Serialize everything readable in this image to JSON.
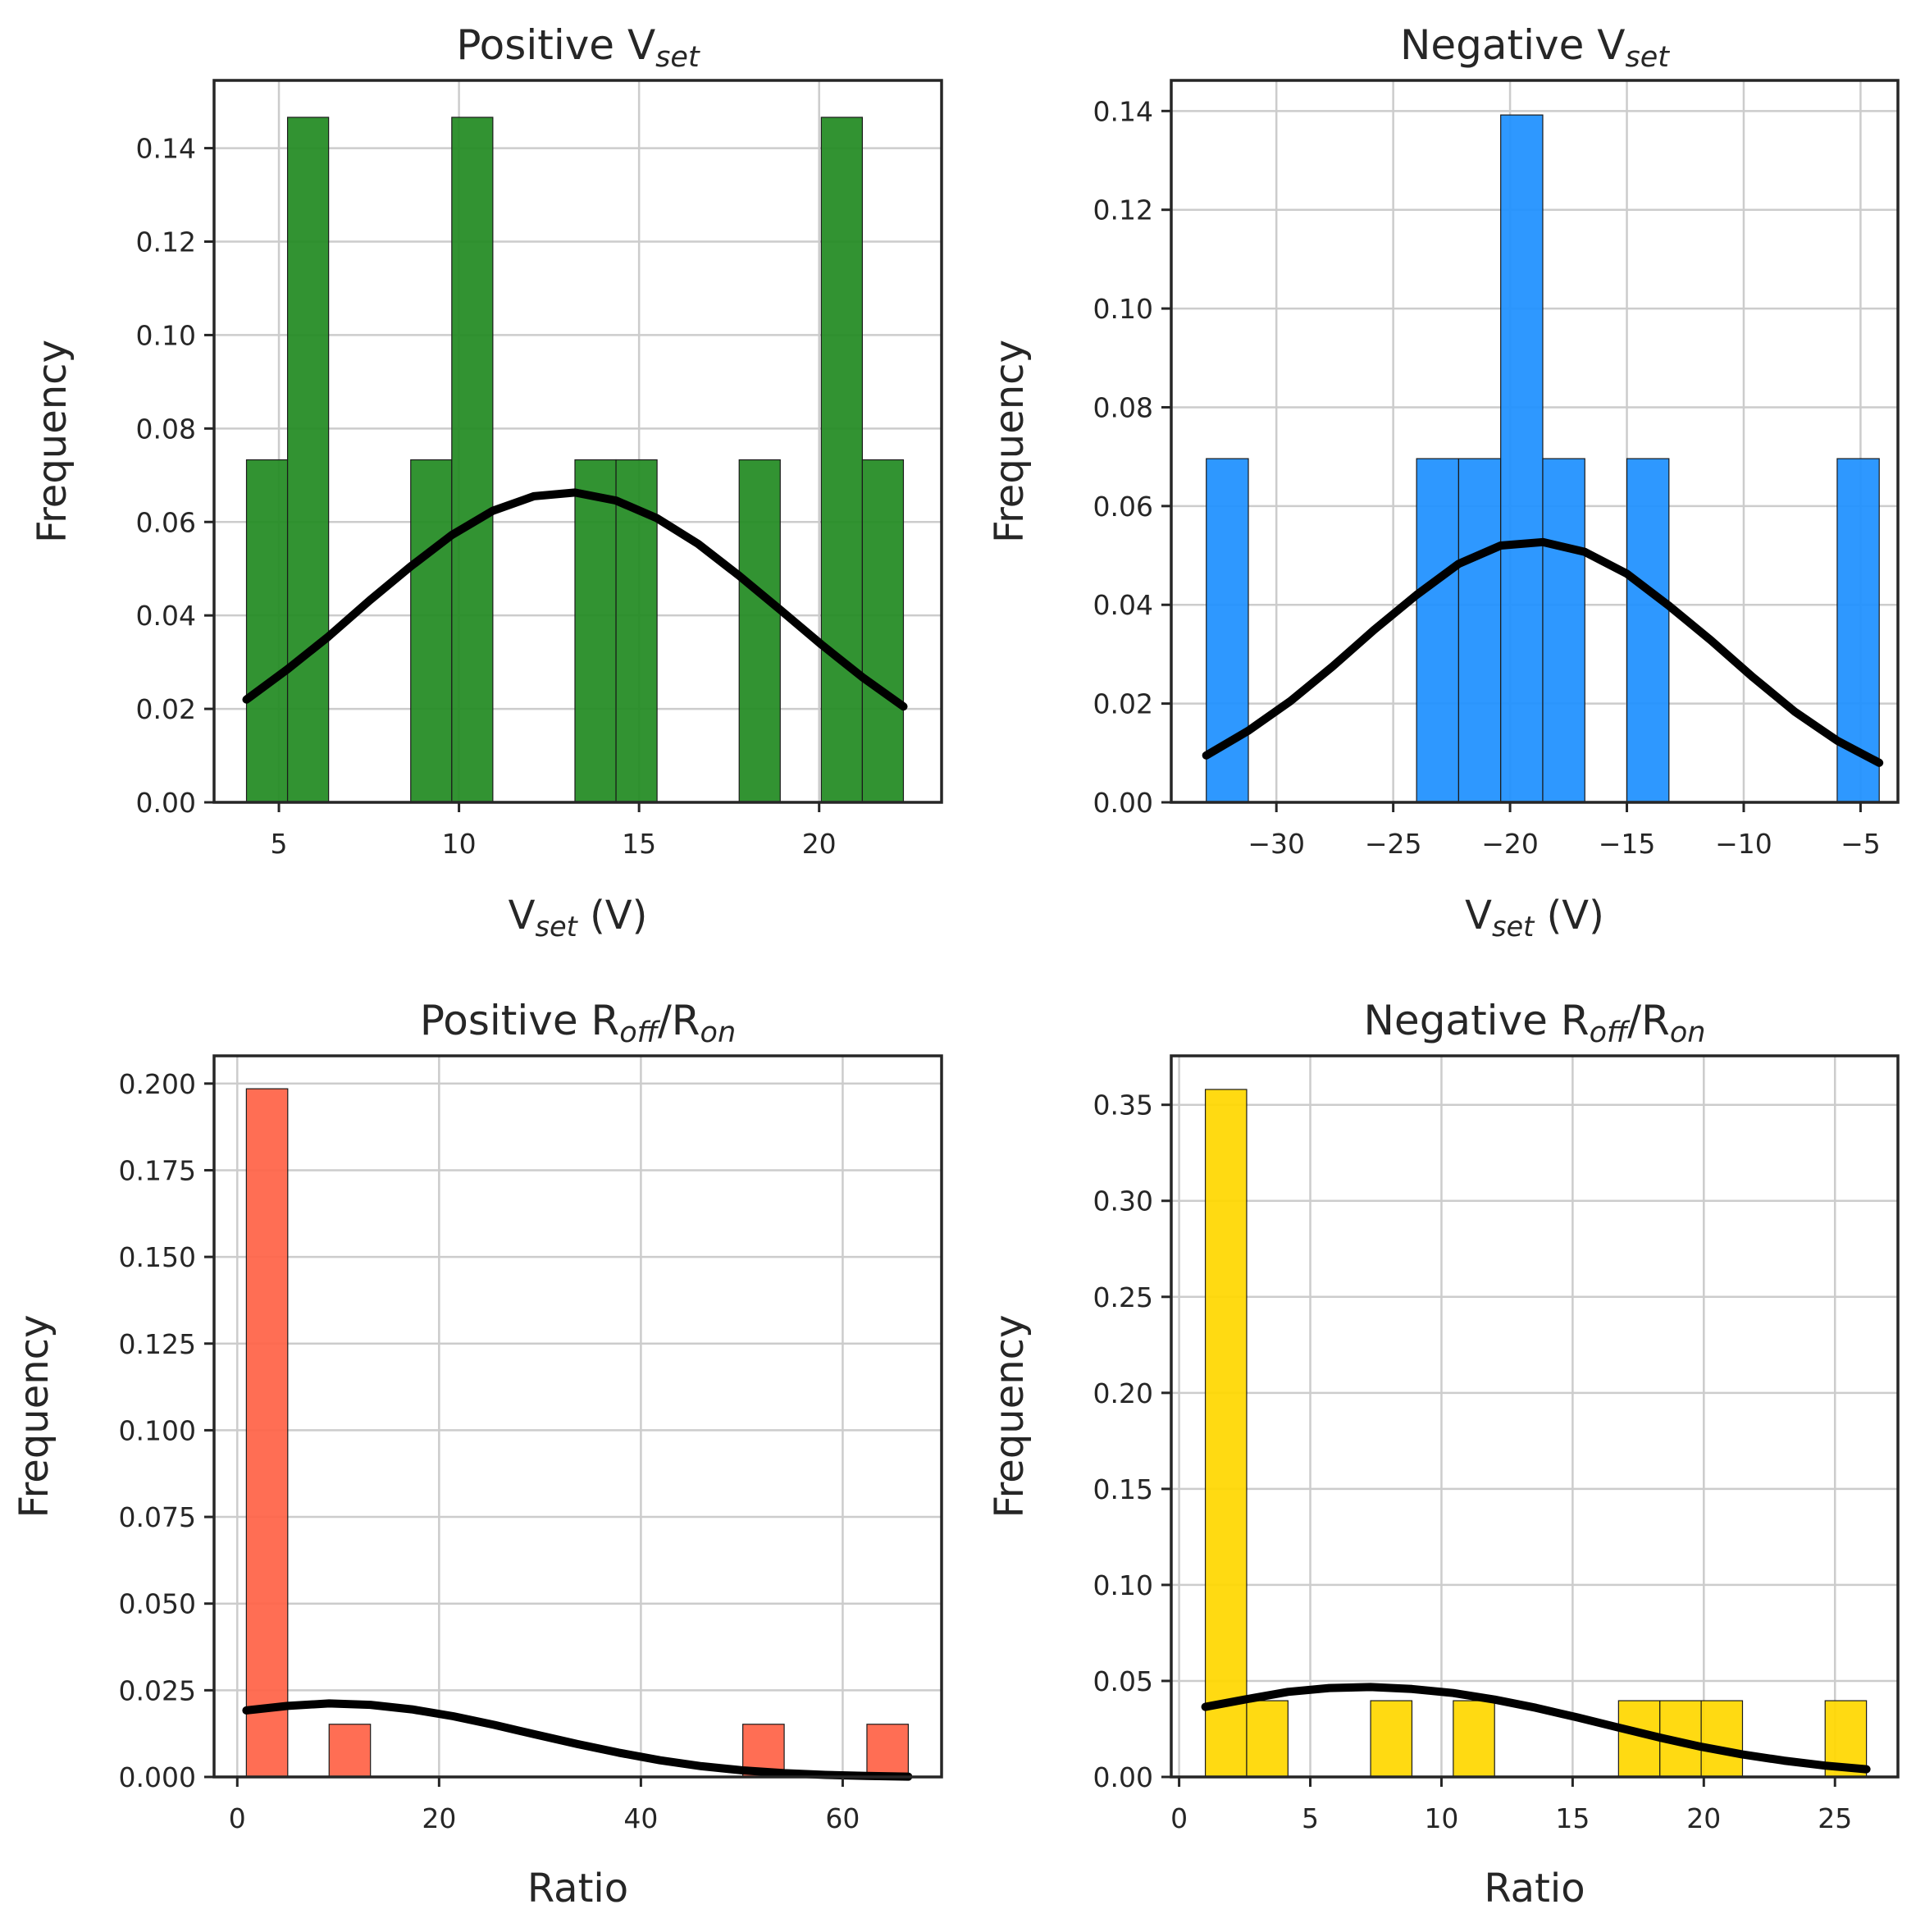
{
  "chart_data": [
    {
      "type": "bar",
      "title": "Positive V",
      "title_sub": "set",
      "xlabel": "V",
      "xlabel_sub": "set",
      "xlabel_suffix": " (V)",
      "ylabel": "Frequency",
      "xlim": [
        3.2,
        23.4
      ],
      "ylim": [
        0,
        0.1545
      ],
      "xticks": [
        5,
        10,
        15,
        20
      ],
      "yticks": [
        0.0,
        0.02,
        0.04,
        0.06,
        0.08,
        0.1,
        0.12,
        0.14
      ],
      "ytick_labels": [
        "0.00",
        "0.02",
        "0.04",
        "0.06",
        "0.08",
        "0.10",
        "0.12",
        "0.14"
      ],
      "grid": true,
      "color": "#228B22",
      "bin_edges": [
        4.1,
        5.24,
        6.38,
        7.52,
        8.66,
        9.8,
        10.94,
        12.08,
        13.22,
        14.36,
        15.5,
        16.64,
        17.78,
        18.92,
        20.06,
        21.2,
        22.34
      ],
      "values": [
        0.0733,
        0.1466,
        0,
        0,
        0.0733,
        0.1466,
        0,
        0,
        0.0733,
        0.0733,
        0,
        0,
        0.0733,
        0,
        0.1466,
        0.0733
      ],
      "kde": {
        "x": [
          4.1,
          5.24,
          6.38,
          7.52,
          8.66,
          9.8,
          10.94,
          12.08,
          13.22,
          14.36,
          15.5,
          16.64,
          17.78,
          18.92,
          20.06,
          21.2,
          22.34
        ],
        "y": [
          0.022,
          0.0285,
          0.0355,
          0.0432,
          0.0505,
          0.0572,
          0.0624,
          0.0655,
          0.0663,
          0.0646,
          0.0608,
          0.0553,
          0.0485,
          0.0412,
          0.0338,
          0.0268,
          0.0205
        ]
      }
    },
    {
      "type": "bar",
      "title": "Negative V",
      "title_sub": "set",
      "xlabel": "V",
      "xlabel_sub": "set",
      "xlabel_suffix": " (V)",
      "ylabel": "Frequency",
      "xlim": [
        -34.5,
        -3.4
      ],
      "ylim": [
        0,
        0.1462
      ],
      "xticks": [
        -30,
        -25,
        -20,
        -15,
        -10,
        -5
      ],
      "xtick_labels": [
        "−30",
        "−25",
        "−20",
        "−15",
        "−10",
        "−5"
      ],
      "yticks": [
        0.0,
        0.02,
        0.04,
        0.06,
        0.08,
        0.1,
        0.12,
        0.14
      ],
      "ytick_labels": [
        "0.00",
        "0.02",
        "0.04",
        "0.06",
        "0.08",
        "0.10",
        "0.12",
        "0.14"
      ],
      "grid": true,
      "color": "#1E90FF",
      "bin_edges": [
        -33.0,
        -31.2,
        -29.4,
        -27.6,
        -25.8,
        -24.0,
        -22.2,
        -20.4,
        -18.6,
        -16.8,
        -15.0,
        -13.2,
        -11.4,
        -9.6,
        -7.8,
        -6.0,
        -4.2
      ],
      "values": [
        0.0696,
        0,
        0,
        0,
        0,
        0.0696,
        0.0696,
        0.1392,
        0.0696,
        0,
        0.0696,
        0,
        0,
        0,
        0,
        0.0696
      ],
      "kde": {
        "x": [
          -33.0,
          -31.2,
          -29.4,
          -27.6,
          -25.8,
          -24.0,
          -22.2,
          -20.4,
          -18.6,
          -16.8,
          -15.0,
          -13.2,
          -11.4,
          -9.6,
          -7.8,
          -6.0,
          -4.2
        ],
        "y": [
          0.0095,
          0.0145,
          0.0205,
          0.0275,
          0.035,
          0.042,
          0.0483,
          0.052,
          0.0527,
          0.0507,
          0.0463,
          0.0398,
          0.0328,
          0.0253,
          0.0183,
          0.0125,
          0.008
        ]
      }
    },
    {
      "type": "bar",
      "title": "Positive R",
      "title_sub1": "off",
      "title_mid": "/R",
      "title_sub2": "on",
      "xlabel": "Ratio",
      "ylabel": "Frequency",
      "xlim": [
        -2.3,
        69.8
      ],
      "ylim": [
        0,
        0.208
      ],
      "xticks": [
        0,
        20,
        40,
        60
      ],
      "yticks": [
        0.0,
        0.025,
        0.05,
        0.075,
        0.1,
        0.125,
        0.15,
        0.175,
        0.2
      ],
      "ytick_labels": [
        "0.000",
        "0.025",
        "0.050",
        "0.075",
        "0.100",
        "0.125",
        "0.150",
        "0.175",
        "0.200"
      ],
      "grid": true,
      "color": "#FF6347",
      "bin_edges": [
        0.9,
        5.0,
        9.1,
        13.2,
        17.3,
        21.4,
        25.5,
        29.6,
        33.7,
        37.8,
        41.9,
        46.0,
        50.1,
        54.2,
        58.3,
        62.4,
        66.5
      ],
      "values": [
        0.1985,
        0,
        0.0152,
        0,
        0,
        0,
        0,
        0,
        0,
        0,
        0,
        0,
        0.0152,
        0,
        0,
        0.0152
      ],
      "kde": {
        "x": [
          0.9,
          5.0,
          9.1,
          13.2,
          17.3,
          21.4,
          25.5,
          29.6,
          33.7,
          37.8,
          41.9,
          46.0,
          50.1,
          54.2,
          58.3,
          62.4,
          66.5
        ],
        "y": [
          0.0192,
          0.0205,
          0.0212,
          0.0208,
          0.0195,
          0.0175,
          0.015,
          0.0122,
          0.0095,
          0.007,
          0.0048,
          0.0031,
          0.0019,
          0.0011,
          0.0006,
          0.0003,
          0.0001
        ]
      }
    },
    {
      "type": "bar",
      "title": "Negative R",
      "title_sub1": "off",
      "title_mid": "/R",
      "title_sub2": "on",
      "xlabel": "Ratio",
      "ylabel": "Frequency",
      "xlim": [
        -0.3,
        27.4
      ],
      "ylim": [
        0,
        0.3755
      ],
      "xticks": [
        0,
        5,
        10,
        15,
        20,
        25
      ],
      "yticks": [
        0.0,
        0.05,
        0.1,
        0.15,
        0.2,
        0.25,
        0.3,
        0.35
      ],
      "ytick_labels": [
        "0.00",
        "0.05",
        "0.10",
        "0.15",
        "0.20",
        "0.25",
        "0.30",
        "0.35"
      ],
      "grid": true,
      "color": "#FFD700",
      "bin_edges": [
        1.0,
        2.575,
        4.15,
        5.725,
        7.3,
        8.875,
        10.45,
        12.025,
        13.6,
        15.175,
        16.75,
        18.325,
        19.9,
        21.475,
        23.05,
        24.625,
        26.2
      ],
      "values": [
        0.358,
        0.0397,
        0,
        0,
        0.0397,
        0,
        0.0397,
        0,
        0,
        0,
        0.0397,
        0.0397,
        0.0397,
        0,
        0,
        0.0397
      ],
      "kde": {
        "x": [
          1.0,
          2.575,
          4.15,
          5.725,
          7.3,
          8.875,
          10.45,
          12.025,
          13.6,
          15.175,
          16.75,
          18.325,
          19.9,
          21.475,
          23.05,
          24.625,
          26.2
        ],
        "y": [
          0.0365,
          0.0405,
          0.0443,
          0.0463,
          0.0468,
          0.0458,
          0.0437,
          0.0403,
          0.036,
          0.031,
          0.0257,
          0.0205,
          0.0157,
          0.0117,
          0.0085,
          0.0059,
          0.004
        ]
      }
    }
  ]
}
